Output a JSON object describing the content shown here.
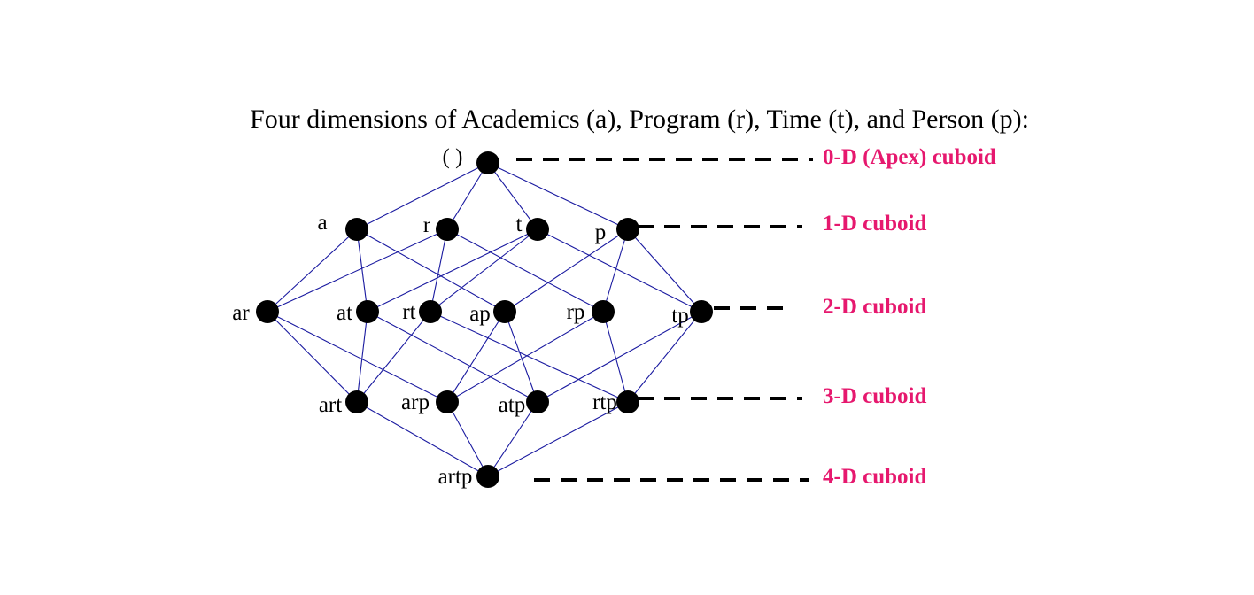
{
  "title": "Four dimensions of Academics (a), Program (r), Time (t), and Person (p):",
  "colors": {
    "edge": "#1a1aa0",
    "node": "#000000",
    "level_label": "#e6186e",
    "leader": "#000000"
  },
  "nodes": [
    {
      "id": "apex",
      "label": "( )"
    },
    {
      "id": "a",
      "label": "a"
    },
    {
      "id": "r",
      "label": "r"
    },
    {
      "id": "t",
      "label": "t"
    },
    {
      "id": "p",
      "label": "p"
    },
    {
      "id": "ar",
      "label": "ar"
    },
    {
      "id": "at",
      "label": "at"
    },
    {
      "id": "rt",
      "label": "rt"
    },
    {
      "id": "ap",
      "label": "ap"
    },
    {
      "id": "rp",
      "label": "rp"
    },
    {
      "id": "tp",
      "label": "tp"
    },
    {
      "id": "art",
      "label": "art"
    },
    {
      "id": "arp",
      "label": "arp"
    },
    {
      "id": "atp",
      "label": "atp"
    },
    {
      "id": "rtp",
      "label": "rtp"
    },
    {
      "id": "artp",
      "label": "artp"
    }
  ],
  "edges": [
    [
      "apex",
      "a"
    ],
    [
      "apex",
      "r"
    ],
    [
      "apex",
      "t"
    ],
    [
      "apex",
      "p"
    ],
    [
      "a",
      "ar"
    ],
    [
      "a",
      "at"
    ],
    [
      "a",
      "ap"
    ],
    [
      "r",
      "ar"
    ],
    [
      "r",
      "rt"
    ],
    [
      "r",
      "rp"
    ],
    [
      "t",
      "at"
    ],
    [
      "t",
      "rt"
    ],
    [
      "t",
      "tp"
    ],
    [
      "p",
      "ap"
    ],
    [
      "p",
      "rp"
    ],
    [
      "p",
      "tp"
    ],
    [
      "ar",
      "art"
    ],
    [
      "ar",
      "arp"
    ],
    [
      "at",
      "art"
    ],
    [
      "at",
      "atp"
    ],
    [
      "rt",
      "art"
    ],
    [
      "rt",
      "rtp"
    ],
    [
      "ap",
      "arp"
    ],
    [
      "ap",
      "atp"
    ],
    [
      "rp",
      "arp"
    ],
    [
      "rp",
      "rtp"
    ],
    [
      "tp",
      "atp"
    ],
    [
      "tp",
      "rtp"
    ],
    [
      "art",
      "artp"
    ],
    [
      "arp",
      "artp"
    ],
    [
      "atp",
      "artp"
    ],
    [
      "rtp",
      "artp"
    ]
  ],
  "levels": [
    {
      "id": "level-0",
      "label": "0-D (Apex) cuboid"
    },
    {
      "id": "level-1",
      "label": "1-D cuboid"
    },
    {
      "id": "level-2",
      "label": "2-D cuboid"
    },
    {
      "id": "level-3",
      "label": "3-D cuboid"
    },
    {
      "id": "level-4",
      "label": "4-D cuboid"
    }
  ]
}
